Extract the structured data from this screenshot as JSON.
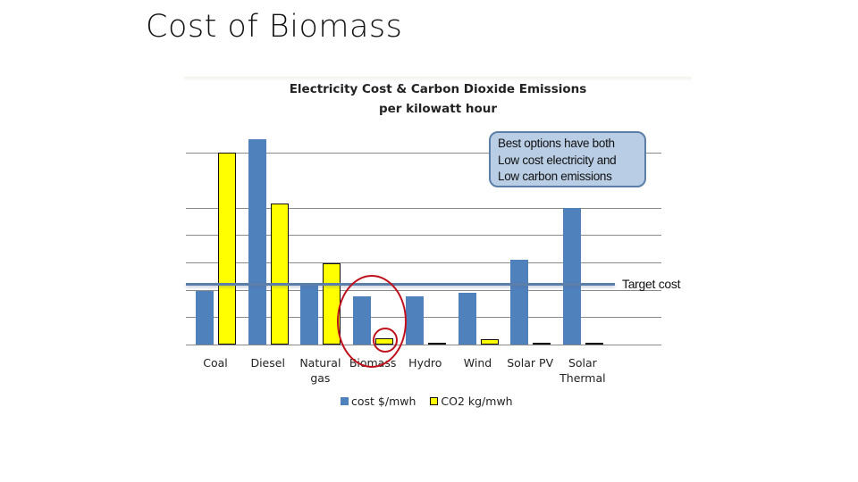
{
  "slide": {
    "title": "Cost of Biomass"
  },
  "chart": {
    "title_line1": "Electricity Cost & Carbon  Dioxide Emissions",
    "title_line2": "per kilowatt hour",
    "callout": [
      "Best options have both",
      "Low cost electricity and",
      "Low carbon emissions"
    ],
    "target_label": "Target cost",
    "legend": [
      {
        "label": "cost $/mwh",
        "color": "#4f81bd"
      },
      {
        "label": "CO2 kg/mwh",
        "color": "#ffff00"
      }
    ],
    "highlight": "Biomass"
  },
  "chart_data": {
    "type": "bar",
    "title": "Electricity Cost & Carbon Dioxide Emissions per kilowatt hour",
    "xlabel": "",
    "ylabel": "",
    "y_units_note": "No y-axis tick labels shown; values in gridline units (relative scale)",
    "ylim": [
      0,
      7.5
    ],
    "grid": true,
    "gridlines_at": [
      1,
      2,
      3,
      4,
      5,
      7
    ],
    "legend_position": "bottom",
    "categories": [
      "Coal",
      "Diesel",
      "Natural gas",
      "Biomass",
      "Hydro",
      "Wind",
      "Solar PV",
      "Solar Thermal"
    ],
    "series": [
      {
        "name": "cost $/mwh",
        "color": "#4f81bd",
        "values": [
          1.95,
          7.5,
          2.2,
          1.75,
          1.75,
          1.9,
          3.1,
          5.0
        ]
      },
      {
        "name": "CO2 kg/mwh",
        "color": "#ffff00",
        "values": [
          7.0,
          5.15,
          2.95,
          0.22,
          0.06,
          0.2,
          0.05,
          0.05
        ]
      }
    ],
    "reference_lines": [
      {
        "label": "Target cost",
        "y": 2.2,
        "color": "#5b7fa8"
      }
    ],
    "annotations": [
      "Callout: Best options have both Low cost electricity and Low carbon emissions",
      "Red ellipse around Biomass bars; small red circle around Biomass CO2 bar"
    ]
  }
}
